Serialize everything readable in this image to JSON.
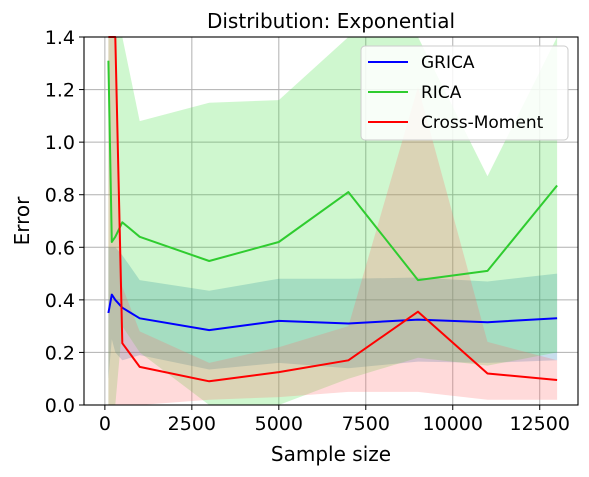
{
  "chart_data": {
    "type": "line",
    "title": "Distribution: Exponential",
    "xlabel": "Sample size",
    "ylabel": "Error",
    "xlim": [
      -600,
      13600
    ],
    "ylim": [
      0.0,
      1.4
    ],
    "xticks": [
      0,
      2500,
      5000,
      7500,
      10000,
      12500
    ],
    "xtick_labels": [
      "0",
      "2500",
      "5000",
      "7500",
      "10000",
      "12500"
    ],
    "yticks": [
      0.0,
      0.2,
      0.4,
      0.6,
      0.8,
      1.0,
      1.2,
      1.4
    ],
    "ytick_labels": [
      "0.0",
      "0.2",
      "0.4",
      "0.6",
      "0.8",
      "1.0",
      "1.2",
      "1.4"
    ],
    "grid": true,
    "legend_position": "top-right",
    "x": [
      100,
      200,
      300,
      500,
      1000,
      3000,
      5000,
      7000,
      9000,
      11000,
      13000
    ],
    "series": [
      {
        "name": "GRICA",
        "color": "#0000ff",
        "band_color": "#1f77b4",
        "values": [
          0.35,
          0.42,
          0.4,
          0.37,
          0.33,
          0.285,
          0.32,
          0.31,
          0.325,
          0.315,
          0.33
        ],
        "lower": [
          0.1,
          0.25,
          0.2,
          0.17,
          0.19,
          0.135,
          0.16,
          0.14,
          0.165,
          0.16,
          0.17
        ],
        "upper": [
          0.6,
          0.6,
          0.6,
          0.57,
          0.475,
          0.435,
          0.48,
          0.48,
          0.485,
          0.47,
          0.5
        ]
      },
      {
        "name": "RICA",
        "color": "#2fcc2f",
        "band_color": "#41e141",
        "values": [
          1.31,
          0.62,
          0.64,
          0.695,
          0.64,
          0.548,
          0.62,
          0.81,
          0.475,
          0.51,
          0.835
        ],
        "lower": [
          0.0,
          0.0,
          0.0,
          0.3,
          0.2,
          0.0,
          0.0,
          0.1,
          0.18,
          0.15,
          0.2
        ],
        "upper": [
          1.4,
          1.4,
          1.4,
          1.4,
          1.08,
          1.15,
          1.16,
          1.4,
          1.4,
          0.87,
          1.4
        ]
      },
      {
        "name": "Cross-Moment",
        "color": "#ff0000",
        "band_color": "#ff6b6b",
        "values": [
          1.4,
          1.4,
          1.4,
          0.235,
          0.145,
          0.09,
          0.125,
          0.17,
          0.355,
          0.12,
          0.095
        ],
        "lower": [
          0.0,
          0.0,
          0.0,
          0.0,
          0.0,
          0.02,
          0.03,
          0.05,
          0.05,
          0.02,
          0.02
        ],
        "upper": [
          1.4,
          1.4,
          1.4,
          0.45,
          0.28,
          0.16,
          0.22,
          0.3,
          1.21,
          0.24,
          0.17
        ]
      }
    ]
  }
}
